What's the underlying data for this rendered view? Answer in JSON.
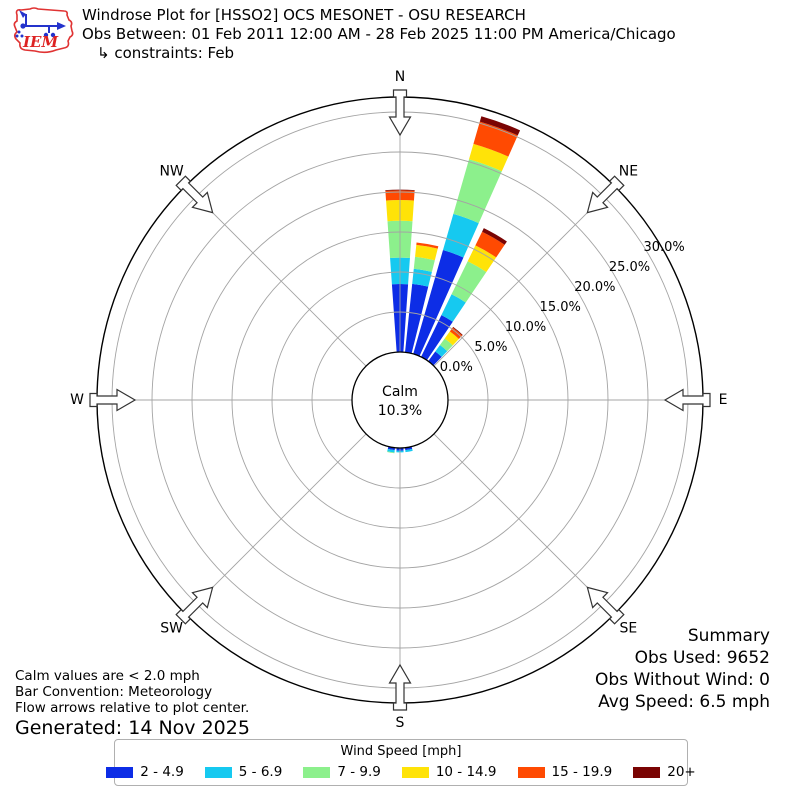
{
  "header": {
    "logo_text": "IEM",
    "title": "Windrose Plot for [HSSO2] OCS MESONET - OSU RESEARCH",
    "subtitle": "Obs Between: 01 Feb 2011 12:00 AM - 28 Feb 2025 11:00 PM America/Chicago",
    "constraints": "↳ constraints: Feb"
  },
  "chart_data": {
    "type": "windrose",
    "title": "Windrose Plot for [HSSO2] OCS MESONET - OSU RESEARCH",
    "subtitle": "Obs Between: 01 Feb 2011 12:00 AM - 28 Feb 2025 11:00 PM America/Chicago",
    "constraint": "Feb",
    "units": "mph",
    "calm": {
      "label": "Calm",
      "value_text": "10.3%",
      "value_pct": 10.3
    },
    "radial_ticks_pct": [
      0,
      5,
      10,
      15,
      20,
      25,
      30
    ],
    "radial_tick_labels": [
      "0.0%",
      "5.0%",
      "10.0%",
      "15.0%",
      "20.0%",
      "25.0%",
      "30.0%"
    ],
    "radial_axis_max_pct": 30,
    "compass_labels": [
      "N",
      "NE",
      "E",
      "SE",
      "S",
      "SW",
      "W",
      "NW"
    ],
    "speed_bins": [
      {
        "label": "2 - 4.9",
        "color": "#0d2de6"
      },
      {
        "label": "5 - 6.9",
        "color": "#16c9f0"
      },
      {
        "label": "7 - 9.9",
        "color": "#8cf08c"
      },
      {
        "label": "10 - 14.9",
        "color": "#ffe308"
      },
      {
        "label": "15 - 19.9",
        "color": "#ff4a02"
      },
      {
        "label": "20+",
        "color": "#7a0403"
      }
    ],
    "bars": [
      {
        "dir_deg": 0,
        "segments_pct": [
          8.5,
          3.3,
          4.6,
          2.6,
          1.2,
          0.1
        ]
      },
      {
        "dir_deg": 10,
        "segments_pct": [
          8.6,
          1.9,
          1.5,
          1.5,
          0.3,
          0
        ]
      },
      {
        "dir_deg": 20,
        "segments_pct": [
          13.5,
          4.7,
          7.1,
          2.0,
          2.9,
          0.7
        ]
      },
      {
        "dir_deg": 30,
        "segments_pct": [
          5.8,
          2.9,
          4.6,
          2.2,
          1.9,
          0.5
        ]
      },
      {
        "dir_deg": 40,
        "segments_pct": [
          1.5,
          1.0,
          1.0,
          1.1,
          0.6,
          0.1
        ]
      },
      {
        "dir_deg": 170,
        "segments_pct": [
          0.3,
          0.25,
          0,
          0,
          0,
          0
        ]
      },
      {
        "dir_deg": 180,
        "segments_pct": [
          0.35,
          0.2,
          0,
          0,
          0,
          0
        ]
      },
      {
        "dir_deg": 190,
        "segments_pct": [
          0.3,
          0.3,
          0.1,
          0,
          0,
          0
        ]
      }
    ]
  },
  "legend": {
    "title": "Wind Speed [mph]"
  },
  "summary": {
    "heading": "Summary",
    "obs_used": "Obs Used: 9652",
    "obs_without_wind": "Obs Without Wind: 0",
    "avg_speed": "Avg Speed: 6.5 mph"
  },
  "notes": {
    "calm": "Calm values are < 2.0 mph",
    "convention": "Bar Convention: Meteorology",
    "arrows": "Flow arrows relative to plot center.",
    "generated": "Generated: 14 Nov 2025"
  }
}
